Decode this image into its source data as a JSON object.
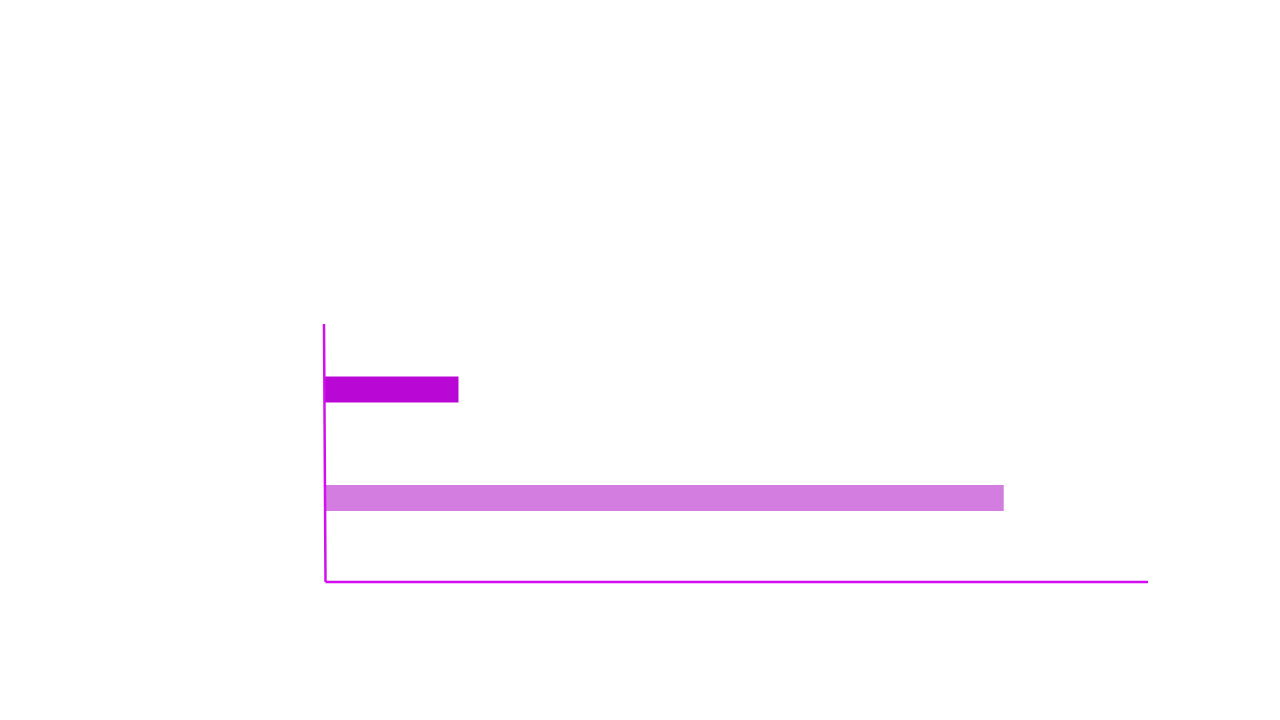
{
  "chart_data": {
    "type": "bar",
    "orientation": "horizontal",
    "categories": [
      "",
      ""
    ],
    "values": [
      5.5,
      27.8
    ],
    "colors": [
      "#b907d6",
      "#d27ddf"
    ],
    "xlim": [
      0,
      33.7
    ],
    "axis_color": "#d30ef0",
    "grid": false,
    "legend": "none",
    "title": "",
    "xlabel": "",
    "ylabel": ""
  }
}
